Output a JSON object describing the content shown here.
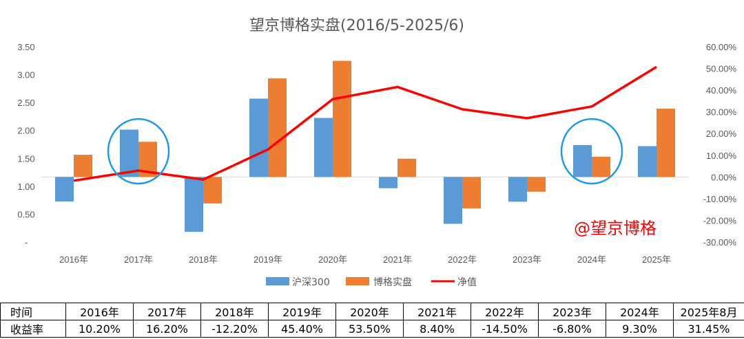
{
  "chart_data": {
    "type": "bar+line",
    "title": "望京博格实盘(2016/5-2025/6)",
    "categories": [
      "2016年",
      "2017年",
      "2018年",
      "2019年",
      "2020年",
      "2021年",
      "2022年",
      "2023年",
      "2024年",
      "2025年"
    ],
    "left_axis": {
      "ylim": [
        0,
        3.5
      ],
      "ticks": [
        {
          "value": 0,
          "label": "-"
        },
        {
          "value": 0.5,
          "label": "0.50"
        },
        {
          "value": 1.0,
          "label": "1.00"
        },
        {
          "value": 1.5,
          "label": "1.50"
        },
        {
          "value": 2.0,
          "label": "2.00"
        },
        {
          "value": 2.5,
          "label": "2.50"
        },
        {
          "value": 3.0,
          "label": "3.00"
        },
        {
          "value": 3.5,
          "label": "3.50"
        }
      ]
    },
    "right_axis": {
      "ylim": [
        -30,
        60
      ],
      "ticks": [
        {
          "value": -30,
          "label": "-30.00%"
        },
        {
          "value": -20,
          "label": "-20.00%"
        },
        {
          "value": -10,
          "label": "-10.00%"
        },
        {
          "value": 0,
          "label": "0.00%"
        },
        {
          "value": 10,
          "label": "10.00%"
        },
        {
          "value": 20,
          "label": "20.00%"
        },
        {
          "value": 30,
          "label": "30.00%"
        },
        {
          "value": 40,
          "label": "40.00%"
        },
        {
          "value": 50,
          "label": "50.00%"
        },
        {
          "value": 60,
          "label": "60.00%"
        }
      ]
    },
    "series": [
      {
        "name": "沪深300",
        "type": "bar",
        "axis": "right",
        "color": "#5b9bd5",
        "values": [
          -11.3,
          21.8,
          -25.3,
          36.1,
          27.2,
          -5.2,
          -21.6,
          -11.4,
          14.7,
          14.2
        ]
      },
      {
        "name": "博格实盘",
        "type": "bar",
        "axis": "right",
        "color": "#ed7d31",
        "values": [
          10.2,
          16.2,
          -12.2,
          45.4,
          53.5,
          8.4,
          -14.5,
          -6.8,
          9.3,
          31.45
        ]
      },
      {
        "name": "净值",
        "type": "line",
        "axis": "left",
        "color": "#ff0000",
        "values": [
          1.1,
          1.28,
          1.12,
          1.66,
          2.56,
          2.78,
          2.38,
          2.22,
          2.43,
          3.14
        ]
      }
    ],
    "legend_position": "bottom",
    "annotations": {
      "watermark": "@望京博格",
      "circled_categories": [
        "2017年",
        "2024年"
      ],
      "circle_color": "#1f9be6"
    }
  },
  "table": {
    "row_headers": [
      "时间",
      "收益率"
    ],
    "years": [
      "2016年",
      "2017年",
      "2018年",
      "2019年",
      "2020年",
      "2021年",
      "2022年",
      "2023年",
      "2024年",
      "2025年8月"
    ],
    "returns": [
      "10.20%",
      "16.20%",
      "-12.20%",
      "45.40%",
      "53.50%",
      "8.40%",
      "-14.50%",
      "-6.80%",
      "9.30%",
      "31.45%"
    ]
  }
}
